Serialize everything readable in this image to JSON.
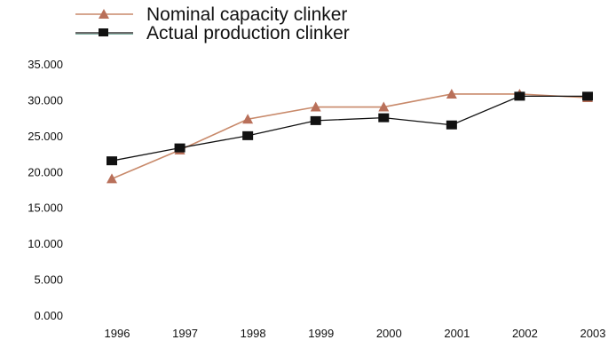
{
  "chart_data": {
    "type": "line",
    "title": "",
    "xlabel": "",
    "ylabel": "",
    "categories": [
      "1996",
      "1997",
      "1998",
      "1999",
      "2000",
      "2001",
      "2002",
      "2003"
    ],
    "ylim": [
      0,
      35000
    ],
    "yticks": [
      0,
      5000,
      10000,
      15000,
      20000,
      25000,
      30000,
      35000
    ],
    "ytick_labels": [
      "0.000",
      "5.000",
      "10.000",
      "15.000",
      "20.000",
      "25.000",
      "30.000",
      "35.000"
    ],
    "grid": false,
    "legend_position": "top-left",
    "series": [
      {
        "name": "Nominal capacity clinker",
        "marker": "triangle",
        "color": "#c8896a",
        "values": [
          19000,
          23000,
          27300,
          29000,
          29000,
          30800,
          30800,
          30300
        ]
      },
      {
        "name": "Actual production clinker",
        "marker": "square",
        "color": "#111111",
        "values": [
          21500,
          23300,
          25000,
          27100,
          27500,
          26500,
          30500,
          30500
        ]
      }
    ]
  }
}
